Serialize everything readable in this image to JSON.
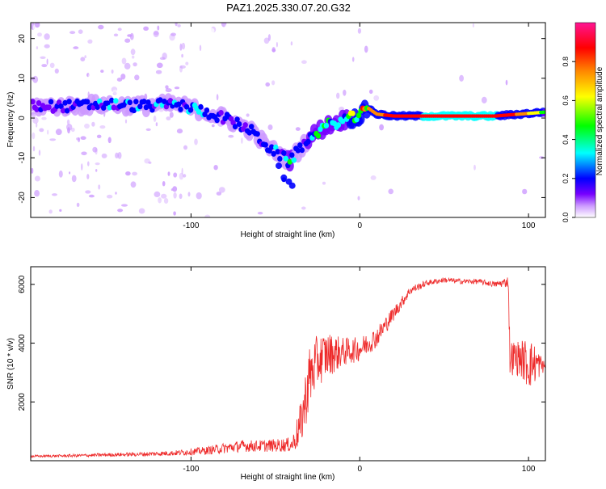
{
  "title": "PAZ1.2025.330.07.20.G32",
  "chart_data": [
    {
      "type": "heatmap",
      "title": "PAZ1.2025.330.07.20.G32",
      "xlabel": "Height of straight line (km)",
      "ylabel": "Frequency (Hz)",
      "xlim": [
        -195,
        110
      ],
      "ylim": [
        -25,
        24
      ],
      "xticks": [
        -100,
        0,
        100
      ],
      "yticks": [
        -20,
        -10,
        0,
        10,
        20
      ],
      "colorbar": {
        "label": "Normalized spectral amplitude",
        "range": [
          0,
          1
        ],
        "ticks": [
          0.0,
          0.2,
          0.4,
          0.6,
          0.8
        ],
        "colors": [
          "#ffffff",
          "#cc99ff",
          "#7700ff",
          "#0000ff",
          "#00ffff",
          "#00ff00",
          "#ffff00",
          "#ff8800",
          "#ff0000",
          "#ff1493"
        ]
      },
      "ridge": {
        "x": [
          -195,
          -170,
          -150,
          -130,
          -110,
          -95,
          -80,
          -65,
          -55,
          -45,
          -42,
          -38,
          -30,
          -20,
          -10,
          -5,
          0,
          5,
          10,
          20,
          40,
          60,
          80,
          95,
          110
        ],
        "freq": [
          3,
          3,
          3.5,
          3,
          3.5,
          2,
          0,
          -3,
          -7,
          -10,
          -11,
          -9,
          -5,
          -2,
          -0.5,
          0,
          0.5,
          2.5,
          1,
          0.5,
          0.5,
          0.5,
          0.5,
          1,
          1.5
        ],
        "amplitude": [
          0.15,
          0.25,
          0.3,
          0.3,
          0.3,
          0.3,
          0.25,
          0.25,
          0.25,
          0.3,
          0.4,
          0.3,
          0.35,
          0.4,
          0.45,
          0.6,
          0.75,
          0.85,
          0.85,
          0.9,
          0.95,
          0.95,
          0.95,
          0.85,
          0.55
        ]
      },
      "branch": {
        "x": [
          -48,
          -45,
          -42,
          -40
        ],
        "freq": [
          -12,
          -15,
          -16,
          -17
        ]
      }
    },
    {
      "type": "line",
      "xlabel": "Height of straight line (km)",
      "ylabel": "SNR (10 * v/v)",
      "xlim": [
        -195,
        110
      ],
      "ylim": [
        0,
        6600
      ],
      "xticks": [
        -100,
        0,
        100
      ],
      "yticks": [
        2000,
        4000,
        6000
      ],
      "series": [
        {
          "name": "SNR",
          "color": "#ee2b2b",
          "x": [
            -195,
            -170,
            -150,
            -130,
            -110,
            -90,
            -80,
            -70,
            -60,
            -50,
            -40,
            -35,
            -30,
            -25,
            -20,
            -10,
            0,
            10,
            20,
            30,
            40,
            50,
            60,
            70,
            80,
            85,
            88,
            89,
            95,
            100,
            105,
            110
          ],
          "y": [
            150,
            170,
            200,
            220,
            260,
            350,
            430,
            500,
            500,
            520,
            550,
            1200,
            2800,
            3400,
            3600,
            3700,
            3800,
            4200,
            5000,
            5800,
            6050,
            6150,
            6100,
            6100,
            6000,
            6050,
            6100,
            3500,
            3500,
            3300,
            3300,
            3200
          ],
          "noise": [
            40,
            50,
            60,
            70,
            90,
            140,
            180,
            200,
            200,
            220,
            250,
            800,
            1100,
            900,
            800,
            500,
            400,
            350,
            250,
            150,
            100,
            90,
            90,
            90,
            100,
            150,
            200,
            600,
            600,
            900,
            600,
            100
          ]
        }
      ]
    }
  ]
}
